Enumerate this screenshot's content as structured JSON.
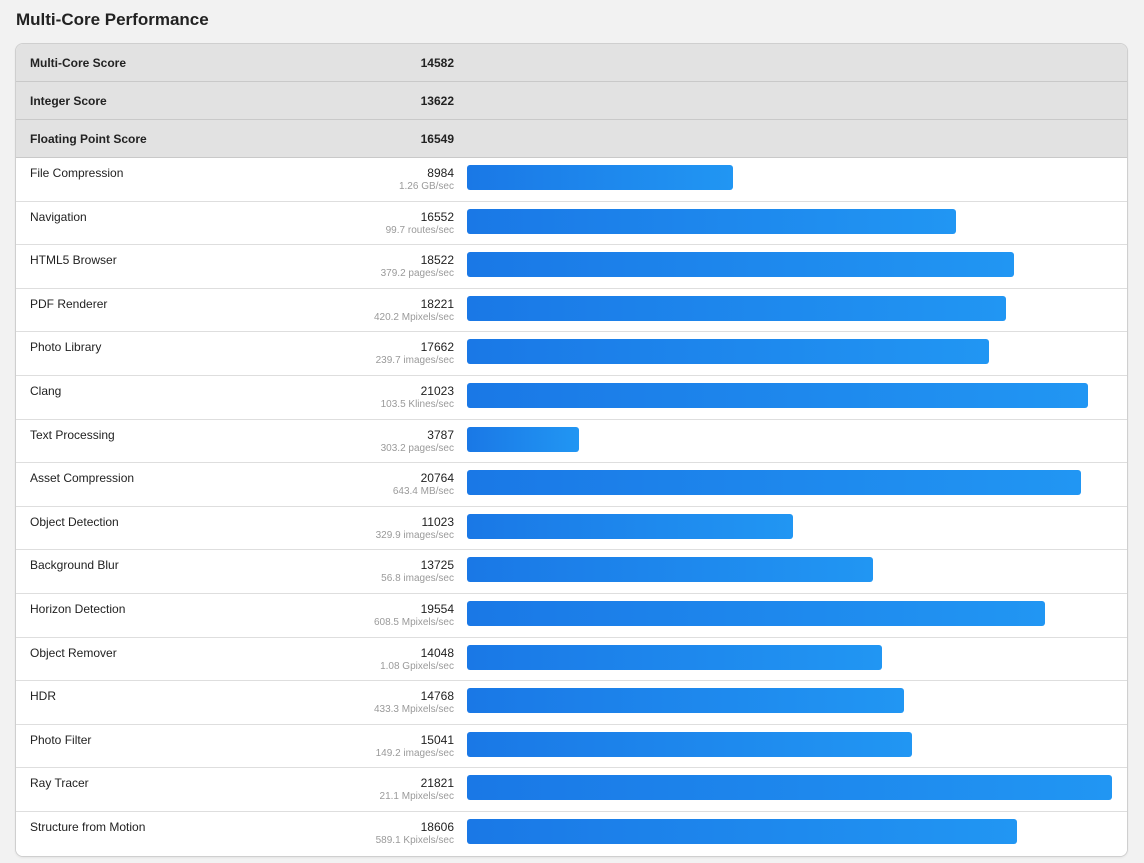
{
  "page_title": "Multi-Core Performance",
  "accent_color": "#1e88e5",
  "summary": [
    {
      "label": "Multi-Core Score",
      "score": "14582"
    },
    {
      "label": "Integer Score",
      "score": "13622"
    },
    {
      "label": "Floating Point Score",
      "score": "16549"
    }
  ],
  "max_score": 21821,
  "benchmarks": [
    {
      "name": "File Compression",
      "score": 8984,
      "rate": "1.26 GB/sec"
    },
    {
      "name": "Navigation",
      "score": 16552,
      "rate": "99.7 routes/sec"
    },
    {
      "name": "HTML5 Browser",
      "score": 18522,
      "rate": "379.2 pages/sec"
    },
    {
      "name": "PDF Renderer",
      "score": 18221,
      "rate": "420.2 Mpixels/sec"
    },
    {
      "name": "Photo Library",
      "score": 17662,
      "rate": "239.7 images/sec"
    },
    {
      "name": "Clang",
      "score": 21023,
      "rate": "103.5 Klines/sec"
    },
    {
      "name": "Text Processing",
      "score": 3787,
      "rate": "303.2 pages/sec"
    },
    {
      "name": "Asset Compression",
      "score": 20764,
      "rate": "643.4 MB/sec"
    },
    {
      "name": "Object Detection",
      "score": 11023,
      "rate": "329.9 images/sec"
    },
    {
      "name": "Background Blur",
      "score": 13725,
      "rate": "56.8 images/sec"
    },
    {
      "name": "Horizon Detection",
      "score": 19554,
      "rate": "608.5 Mpixels/sec"
    },
    {
      "name": "Object Remover",
      "score": 14048,
      "rate": "1.08 Gpixels/sec"
    },
    {
      "name": "HDR",
      "score": 14768,
      "rate": "433.3 Mpixels/sec"
    },
    {
      "name": "Photo Filter",
      "score": 15041,
      "rate": "149.2 images/sec"
    },
    {
      "name": "Ray Tracer",
      "score": 21821,
      "rate": "21.1 Mpixels/sec"
    },
    {
      "name": "Structure from Motion",
      "score": 18606,
      "rate": "589.1 Kpixels/sec"
    }
  ]
}
